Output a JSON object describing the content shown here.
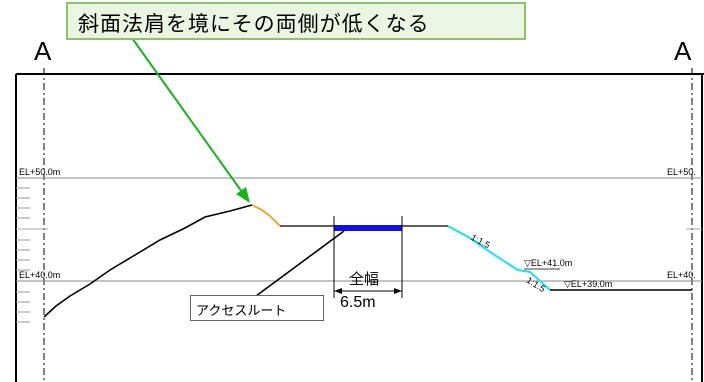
{
  "section_marks": {
    "left": "A",
    "right": "A"
  },
  "callout": {
    "text": "斜面法肩を境にその両側が低くなる",
    "border_color": "#8cc26a",
    "fill_color": "#eaf5e2",
    "arrow_color": "#19b31b"
  },
  "elevation_labels": {
    "upper_left": "EL+50.0m",
    "upper_right": "EL+50.",
    "lower_left": "EL+40.0m",
    "lower_right": "EL+40."
  },
  "road": {
    "width_title": "全幅",
    "width_value": "6.5m",
    "color": "#1010e0"
  },
  "access_route": {
    "label": "アクセスルート"
  },
  "slope_labels": {
    "upper": "1:1.5",
    "lower": "1:1.5"
  },
  "level_marks": {
    "upper": "▽EL+41.0m",
    "lower": "▽EL+39.0m"
  },
  "colors": {
    "left_slope": "#f0a020",
    "right_slope": "#20e0f0",
    "ground": "#000000"
  }
}
